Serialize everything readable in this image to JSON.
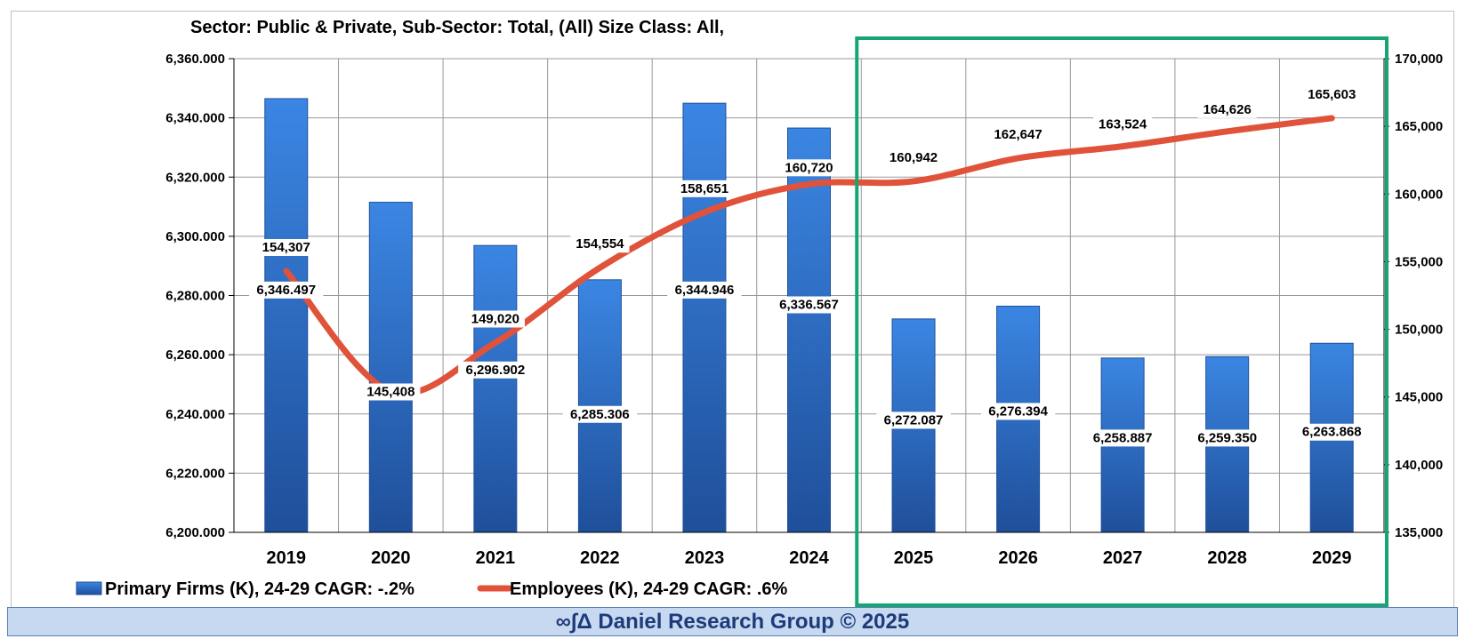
{
  "chart_data": {
    "type": "bar",
    "title": "Sector: Public & Private, Sub-Sector: Total, (All) Size Class: All,",
    "categories": [
      "2019",
      "2020",
      "2021",
      "2022",
      "2023",
      "2024",
      "2025",
      "2026",
      "2027",
      "2028",
      "2029"
    ],
    "series": [
      {
        "name": "Primary Firms (K), 24-29 CAGR: -.2%",
        "type": "bar",
        "axis": "left",
        "values": [
          6346.497,
          6311.5,
          6296.902,
          6285.306,
          6344.946,
          6336.567,
          6272.087,
          6276.394,
          6258.887,
          6259.35,
          6263.868
        ],
        "labels": [
          "6,346.497",
          "",
          "6,296.902",
          "6,285.306",
          "6,344.946",
          "6,336.567",
          "6,272.087",
          "6,276.394",
          "6,258.887",
          "6,259.350",
          "6,263.868"
        ]
      },
      {
        "name": "Employees (K), 24-29 CAGR: .6%",
        "type": "line",
        "axis": "right",
        "values": [
          154307,
          145408,
          149020,
          154554,
          158651,
          160720,
          160942,
          162647,
          163524,
          164626,
          165603
        ],
        "labels": [
          "154,307",
          "145,408",
          "149,020",
          "154,554",
          "158,651",
          "160,720",
          "160,942",
          "162,647",
          "163,524",
          "164,626",
          "165,603"
        ]
      }
    ],
    "y_left": {
      "ylim": [
        6200,
        6360
      ],
      "ticks": [
        6200,
        6220,
        6240,
        6260,
        6280,
        6300,
        6320,
        6340,
        6360
      ],
      "tick_labels": [
        "6,200.000",
        "6,220.000",
        "6,240.000",
        "6,260.000",
        "6,280.000",
        "6,300.000",
        "6,320.000",
        "6,340.000",
        "6,360.000"
      ]
    },
    "y_right": {
      "ylim": [
        135000,
        170000
      ],
      "ticks": [
        135000,
        140000,
        145000,
        150000,
        155000,
        160000,
        165000,
        170000
      ],
      "tick_labels": [
        "135,000",
        "140,000",
        "145,000",
        "150,000",
        "155,000",
        "160,000",
        "165,000",
        "170,000"
      ]
    },
    "highlight": {
      "from": "2025",
      "to": "2029",
      "color": "#17a672"
    },
    "grid": true,
    "legend_position": "bottom-left",
    "colors": {
      "bar": "#2f73cf",
      "bar_dark": "#1f4f9a",
      "line": "#e0533a",
      "grid": "#999999"
    }
  },
  "footer": {
    "text": "∞∫Δ Daniel Research Group © 2025"
  }
}
